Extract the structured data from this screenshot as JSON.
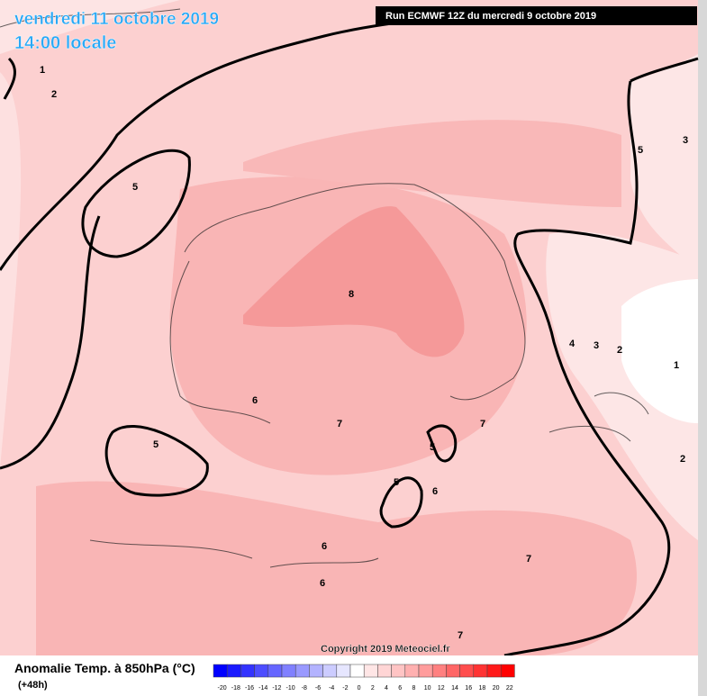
{
  "header": {
    "date": "vendredi 11 octobre 2019",
    "time": "14:00 locale",
    "run": "Run ECMWF 12Z du mercredi 9 octobre 2019"
  },
  "map": {
    "contour_labels": [
      1,
      2,
      5,
      8,
      6,
      7,
      5,
      5,
      5,
      6,
      7,
      6,
      6,
      7,
      7,
      5,
      3,
      4,
      3,
      2,
      1,
      2
    ],
    "copyright": "Copyright 2019 Meteociel.fr"
  },
  "legend": {
    "title": "Anomalie Temp. à 850hPa (°C)",
    "lead": "(+48h)",
    "labels": [
      -20,
      -18,
      -16,
      -14,
      -12,
      -10,
      -8,
      -6,
      -4,
      -2,
      0,
      2,
      4,
      6,
      8,
      10,
      12,
      14,
      16,
      18,
      20,
      22
    ],
    "colors": [
      "#0000ff",
      "#1a1aff",
      "#3333ff",
      "#4d4dff",
      "#6666ff",
      "#8080ff",
      "#9999ff",
      "#b3b3ff",
      "#ccccff",
      "#e6e6ff",
      "#ffffff",
      "#ffe6e6",
      "#ffd5d5",
      "#ffc4c4",
      "#ffb0b0",
      "#ff9c9c",
      "#ff8080",
      "#ff6666",
      "#ff4d4d",
      "#ff3333",
      "#ff1a1a",
      "#ff0000"
    ]
  }
}
